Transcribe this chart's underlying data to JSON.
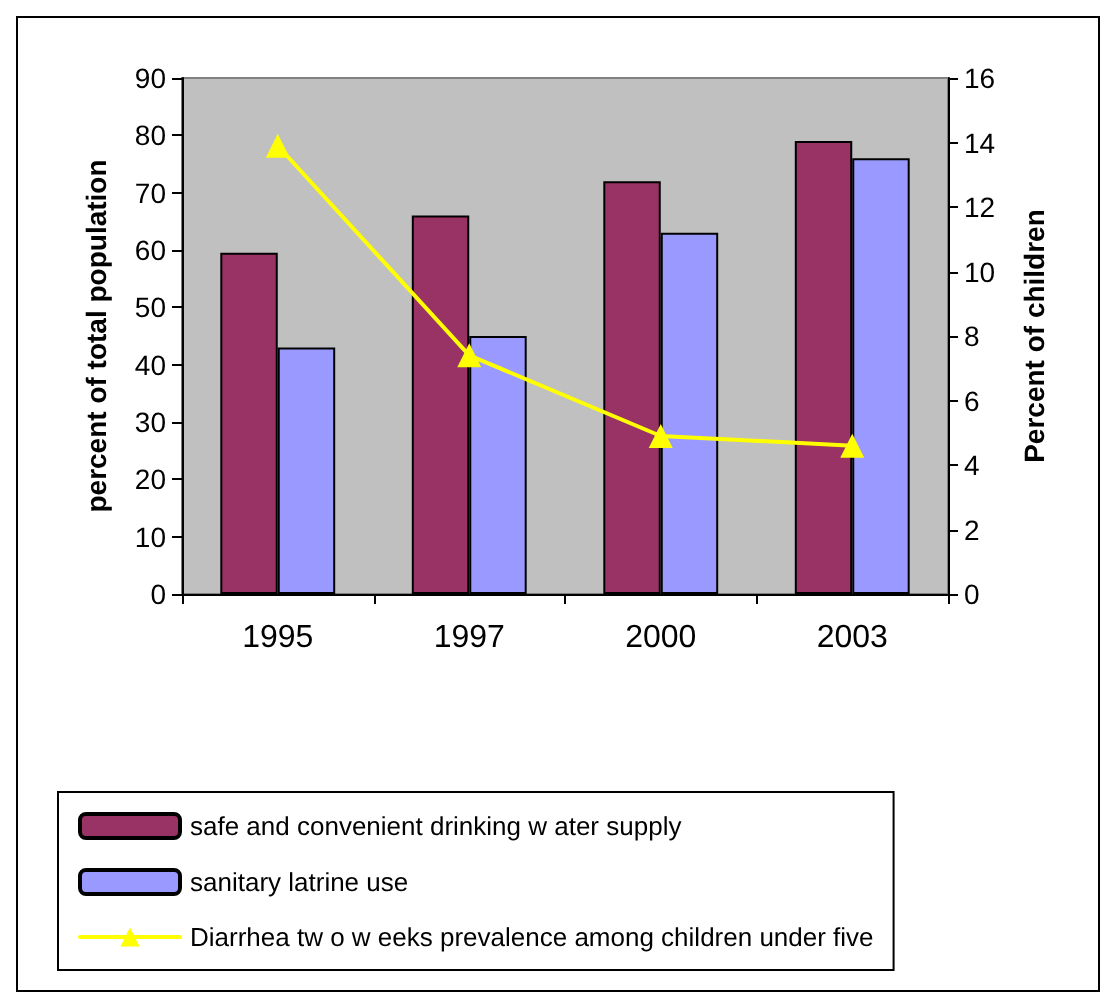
{
  "chart_data": {
    "type": "bar",
    "categories": [
      "1995",
      "1997",
      "2000",
      "2003"
    ],
    "ylabel": "percent of total population",
    "y2label": "Percent of children",
    "ylim": [
      0,
      90
    ],
    "yticks": [
      0,
      10,
      20,
      30,
      40,
      50,
      60,
      70,
      80,
      90
    ],
    "y2lim": [
      0,
      16
    ],
    "y2ticks": [
      0,
      2,
      4,
      6,
      8,
      10,
      12,
      14,
      16
    ],
    "grid": false,
    "legend": "bottom",
    "marker": "triangle",
    "line_style": "solid",
    "series": [
      {
        "name": "safe and convenient drinking w ater supply",
        "color": "#993366",
        "values": [
          59.5,
          66,
          72,
          79
        ]
      },
      {
        "name": "sanitary latrine use",
        "color": "#9999ff",
        "values": [
          43,
          45,
          63,
          76
        ]
      },
      {
        "name": "Diarrhea tw o w eeks prevalence among children under five",
        "type": "line",
        "axis": "y2",
        "color": "#ffff00",
        "values": [
          13.9,
          7.4,
          4.9,
          4.6
        ]
      }
    ]
  }
}
